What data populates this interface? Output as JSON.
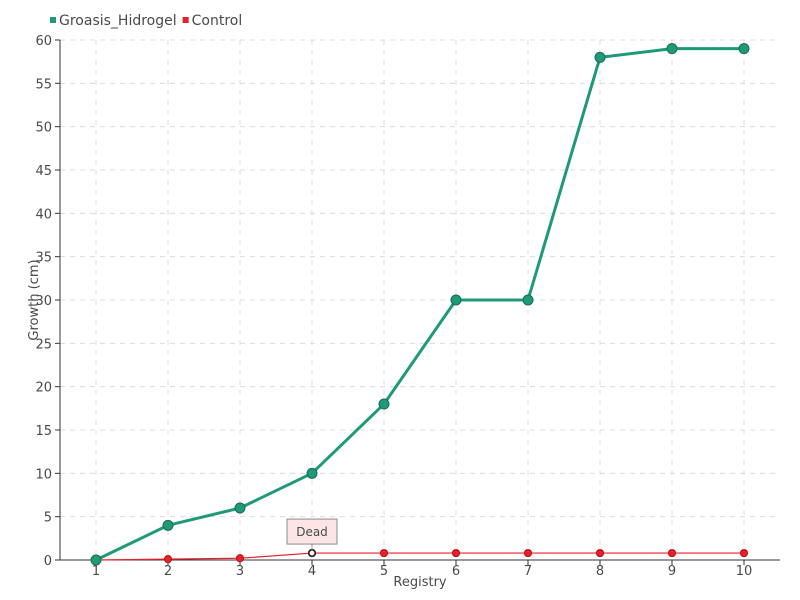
{
  "chart_data": {
    "type": "line",
    "title": "",
    "xlabel": "Registry",
    "ylabel": "Growth (cm)",
    "x": [
      1,
      2,
      3,
      4,
      5,
      6,
      7,
      8,
      9,
      10
    ],
    "x_tick_labels": [
      "1",
      "2",
      "3",
      "4",
      "5",
      "6",
      "7",
      "8",
      "9",
      "10"
    ],
    "y_tick_labels": [
      "0",
      "5",
      "10",
      "15",
      "20",
      "25",
      "30",
      "35",
      "40",
      "45",
      "50",
      "55",
      "60"
    ],
    "ylim": [
      0,
      60
    ],
    "grid": true,
    "legend_position": "top-left",
    "series": [
      {
        "name": "Groasis_Hidrogel",
        "color": "#1f9a78",
        "values": [
          0,
          4,
          6,
          10,
          18,
          30,
          30,
          58,
          59,
          59
        ]
      },
      {
        "name": "Control",
        "color": "#e8202a",
        "values": [
          0,
          0.1,
          0.2,
          0.8,
          0.8,
          0.8,
          0.8,
          0.8,
          0.8,
          0.8
        ]
      }
    ],
    "annotations": [
      {
        "text": "Dead",
        "series": "Control",
        "x": 4,
        "y": 0.8
      }
    ]
  }
}
